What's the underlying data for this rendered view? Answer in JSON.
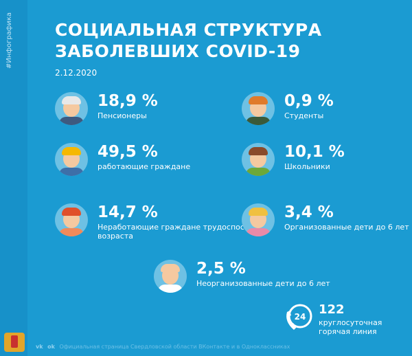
{
  "sidebar_tag": "#Инфографика",
  "title_line1": "СОЦИАЛЬНАЯ СТРУКТУРА",
  "title_line2": "ЗАБОЛЕВШИХ COVID-19",
  "date": "2.12.2020",
  "items": [
    {
      "pct": "18,9 %",
      "label": "Пенсионеры",
      "icon": "pensioner-avatar-icon",
      "hair": "#e8e8e8",
      "shirt": "#3d5a80"
    },
    {
      "pct": "0,9 %",
      "label": "Студенты",
      "icon": "student-avatar-icon",
      "hair": "#e07b2b",
      "shirt": "#3a5a3a"
    },
    {
      "pct": "49,5 %",
      "label": "работающие граждане",
      "icon": "worker-avatar-icon",
      "hair": "#f5b800",
      "shirt": "#3d6fa8"
    },
    {
      "pct": "10,1 %",
      "label": "Школьники",
      "icon": "schoolchild-avatar-icon",
      "hair": "#8a4a2a",
      "shirt": "#6ca83a"
    },
    {
      "pct": "14,7 %",
      "label": "Неработающие граждане трудоспособного возраста",
      "icon": "woman-avatar-icon",
      "hair": "#e0502a",
      "shirt": "#f08a5a"
    },
    {
      "pct": "3,4 %",
      "label": "Организованные дети до 6 лет",
      "icon": "children-group-icon",
      "hair": "#f0c040",
      "shirt": "#e88aa8"
    },
    {
      "pct": "2,5 %",
      "label": "Неорганизованные дети до 6 лет",
      "icon": "baby-avatar-icon",
      "hair": "#f5c9a0",
      "shirt": "#ffffff"
    }
  ],
  "hotline": {
    "number": "122",
    "icon_text": "24",
    "label": "круглосуточная горячая линия"
  },
  "footer": {
    "text": "Официальная страница Свердловской области ВКонтакте и в Одноклассниках",
    "vk": "vk",
    "ok": "ok"
  }
}
